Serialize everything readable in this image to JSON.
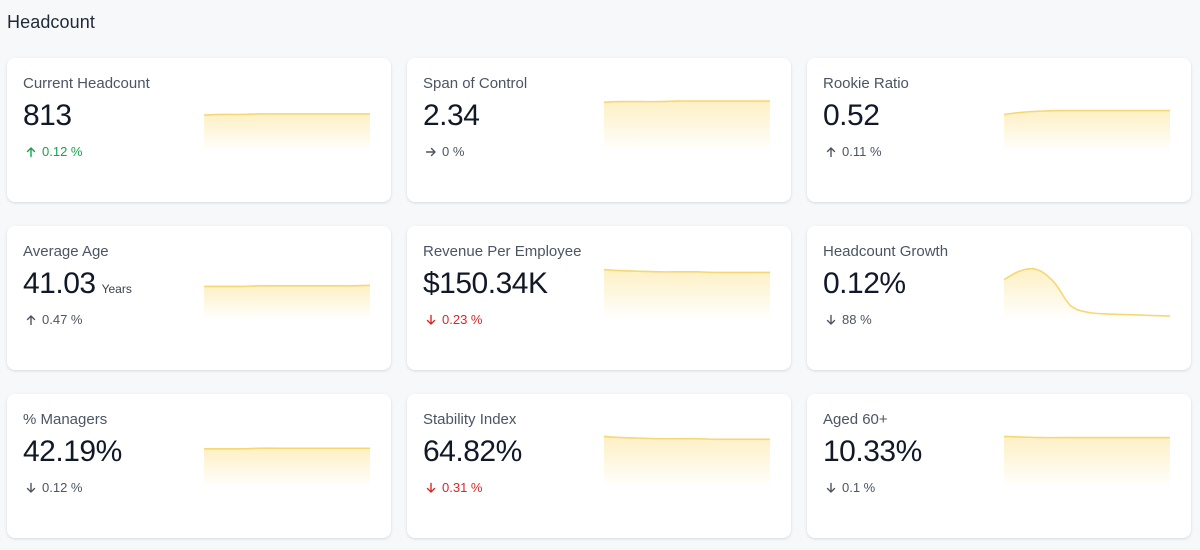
{
  "page": {
    "title": "Headcount"
  },
  "colors": {
    "spark_line": "#f7d774",
    "spark_fill": "#fdf0c4",
    "positive": "#16a34a",
    "negative": "#dc2626",
    "neutral": "#4b5563"
  },
  "cards": [
    {
      "id": "current-headcount",
      "label": "Current Headcount",
      "value": "813",
      "unit": "",
      "trend": {
        "direction": "up",
        "text": "0.12 %",
        "tone": "positive"
      },
      "spark": [
        0.66,
        0.67,
        0.67,
        0.68,
        0.68,
        0.68,
        0.68,
        0.68,
        0.68,
        0.68
      ]
    },
    {
      "id": "span-of-control",
      "label": "Span of Control",
      "value": "2.34",
      "unit": "",
      "trend": {
        "direction": "right",
        "text": "0 %",
        "tone": "neutral"
      },
      "spark": [
        0.89,
        0.9,
        0.9,
        0.9,
        0.91,
        0.91,
        0.91,
        0.91,
        0.91,
        0.91
      ]
    },
    {
      "id": "rookie-ratio",
      "label": "Rookie Ratio",
      "value": "0.52",
      "unit": "",
      "trend": {
        "direction": "up",
        "text": "0.11 %",
        "tone": "neutral"
      },
      "spark": [
        0.67,
        0.71,
        0.73,
        0.74,
        0.74,
        0.74,
        0.74,
        0.74,
        0.74,
        0.74
      ]
    },
    {
      "id": "average-age",
      "label": "Average Age",
      "value": "41.03",
      "unit": "Years",
      "trend": {
        "direction": "up",
        "text": "0.47 %",
        "tone": "neutral"
      },
      "spark": [
        0.6,
        0.6,
        0.6,
        0.61,
        0.61,
        0.61,
        0.61,
        0.61,
        0.61,
        0.62
      ]
    },
    {
      "id": "revenue-per-employee",
      "label": "Revenue Per Employee",
      "value": "$150.34K",
      "unit": "",
      "trend": {
        "direction": "down",
        "text": "0.23 %",
        "tone": "negative"
      },
      "spark": [
        0.9,
        0.88,
        0.87,
        0.86,
        0.86,
        0.86,
        0.85,
        0.85,
        0.85,
        0.85
      ]
    },
    {
      "id": "headcount-growth",
      "label": "Headcount Growth",
      "value": "0.12%",
      "unit": "",
      "trend": {
        "direction": "down",
        "text": "88 %",
        "tone": "neutral"
      },
      "spark": [
        0.72,
        0.88,
        0.9,
        0.68,
        0.26,
        0.14,
        0.11,
        0.1,
        0.09,
        0.08,
        0.07
      ]
    },
    {
      "id": "percent-managers",
      "label": "% Managers",
      "value": "42.19%",
      "unit": "",
      "trend": {
        "direction": "down",
        "text": "0.12 %",
        "tone": "neutral"
      },
      "spark": [
        0.7,
        0.7,
        0.7,
        0.71,
        0.71,
        0.71,
        0.71,
        0.71,
        0.71,
        0.71
      ]
    },
    {
      "id": "stability-index",
      "label": "Stability Index",
      "value": "64.82%",
      "unit": "",
      "trend": {
        "direction": "down",
        "text": "0.31 %",
        "tone": "negative"
      },
      "spark": [
        0.92,
        0.9,
        0.89,
        0.88,
        0.88,
        0.88,
        0.87,
        0.87,
        0.87,
        0.87
      ]
    },
    {
      "id": "aged-60-plus",
      "label": "Aged 60+",
      "value": "10.33%",
      "unit": "",
      "trend": {
        "direction": "down",
        "text": "0.1 %",
        "tone": "neutral"
      },
      "spark": [
        0.92,
        0.91,
        0.9,
        0.9,
        0.9,
        0.9,
        0.9,
        0.9,
        0.9,
        0.9
      ]
    }
  ]
}
